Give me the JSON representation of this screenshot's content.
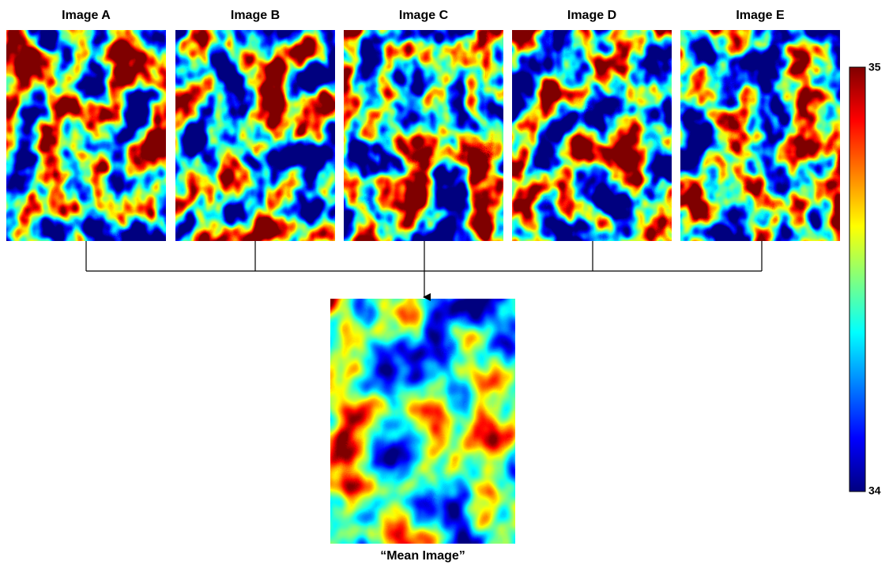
{
  "images": [
    {
      "label": "Image A"
    },
    {
      "label": "Image B"
    },
    {
      "label": "Image C"
    },
    {
      "label": "Image D"
    },
    {
      "label": "Image E"
    }
  ],
  "mean_image": {
    "label": "“Mean Image”"
  },
  "colorbar": {
    "max": 35,
    "min": 34
  }
}
